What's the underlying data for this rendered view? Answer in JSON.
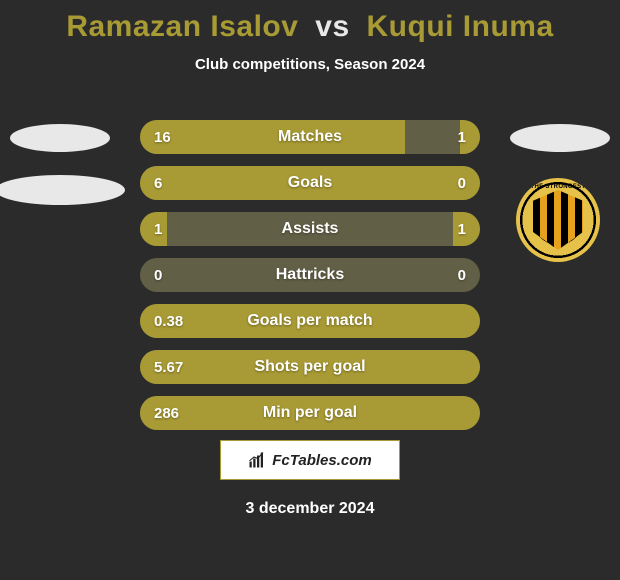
{
  "title_player1": "Ramazan Isalov",
  "title_vs": "vs",
  "title_player2": "Kuqui Inuma",
  "title_color_p1": "#a89a34",
  "title_color_vs": "#e8e8e8",
  "title_color_p2": "#a89a34",
  "subtitle": "Club competitions, Season 2024",
  "branding_text": "FcTables.com",
  "date_text": "3 december 2024",
  "bar_track_color": "#615f45",
  "bar_fill_color": "#a89a34",
  "bar_text_color": "#ffffff",
  "background_color": "#2b2b2b",
  "logo_text": "THE STRONGEST",
  "bars": [
    {
      "label": "Matches",
      "left_val": "16",
      "right_val": "1",
      "left_pct": 78,
      "right_pct": 6
    },
    {
      "label": "Goals",
      "left_val": "6",
      "right_val": "0",
      "left_pct": 100,
      "right_pct": 0
    },
    {
      "label": "Assists",
      "left_val": "1",
      "right_val": "1",
      "left_pct": 8,
      "right_pct": 8
    },
    {
      "label": "Hattricks",
      "left_val": "0",
      "right_val": "0",
      "left_pct": 0,
      "right_pct": 0
    },
    {
      "label": "Goals per match",
      "left_val": "0.38",
      "right_val": "",
      "left_pct": 100,
      "right_pct": 0
    },
    {
      "label": "Shots per goal",
      "left_val": "5.67",
      "right_val": "",
      "left_pct": 100,
      "right_pct": 0
    },
    {
      "label": "Min per goal",
      "left_val": "286",
      "right_val": "",
      "left_pct": 100,
      "right_pct": 0
    }
  ]
}
